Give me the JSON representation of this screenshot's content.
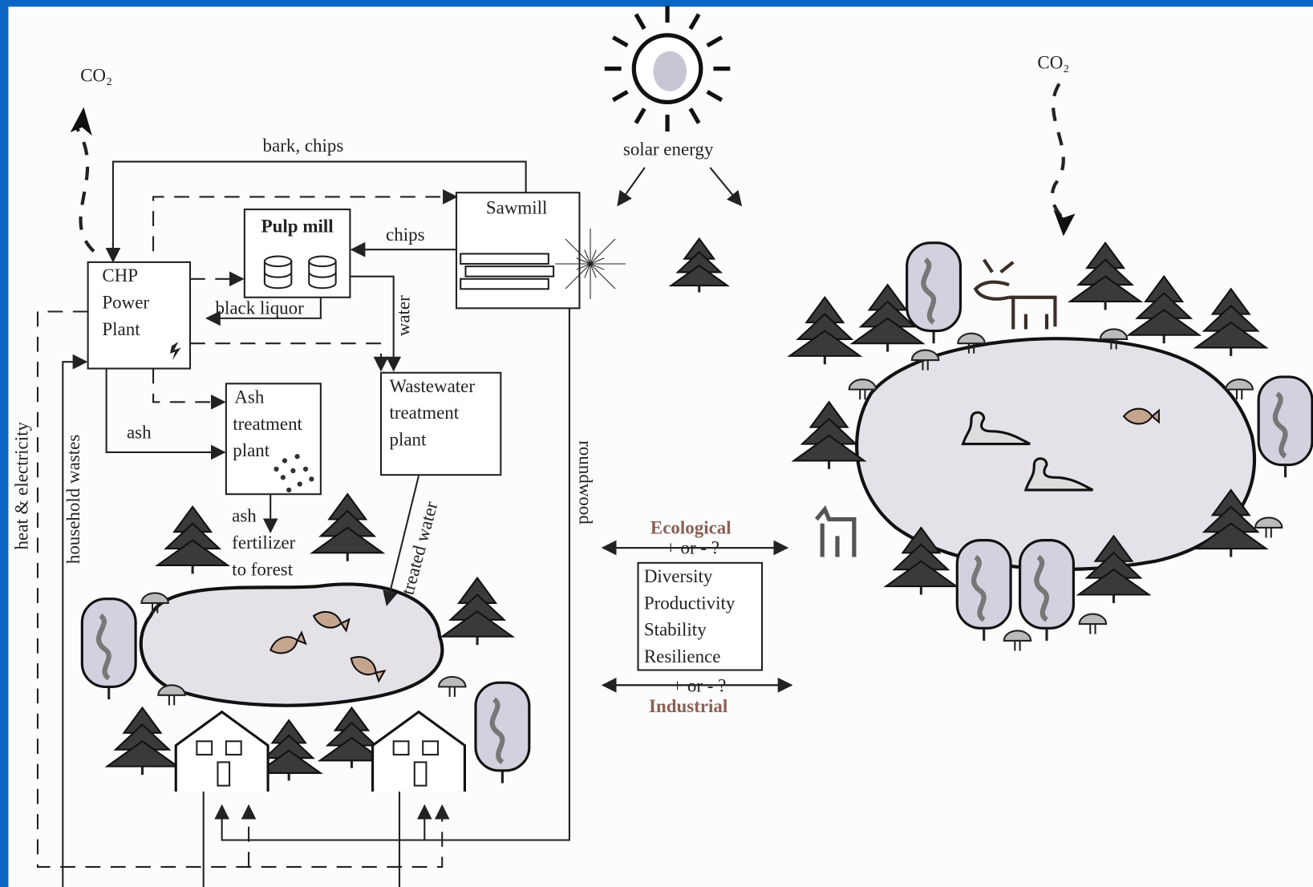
{
  "co2_left": "CO₂",
  "co2_right": "CO₂",
  "solar": "solar energy",
  "nodes": [
    {
      "label": [
        "Sawmill"
      ]
    },
    {
      "label": [
        "Pulp mill"
      ]
    },
    {
      "label": [
        "CHP",
        "Power",
        "Plant"
      ]
    },
    {
      "label": [
        "Ash",
        "treatment",
        "plant"
      ]
    },
    {
      "label": [
        "Wastewater",
        "treatment",
        "plant"
      ]
    }
  ],
  "flows": {
    "bark_chips": "bark, chips",
    "chips": "chips",
    "black_liquor": "black liquor",
    "water": "water",
    "ash": "ash",
    "ash_fertilizer": [
      "ash",
      "fertilizer",
      "to forest"
    ],
    "treated_water": "treated water",
    "roundwood": "roundwood",
    "heat_electricity": "heat & electricity",
    "household_wastes": "household wastes"
  },
  "comparison": {
    "top": "Ecological",
    "top_sign": "+ or - ?",
    "metrics": [
      "Diversity",
      "Productivity",
      "Stability",
      "Resilience"
    ],
    "bottom_sign": "+ or - ?",
    "bottom": "Industrial"
  }
}
